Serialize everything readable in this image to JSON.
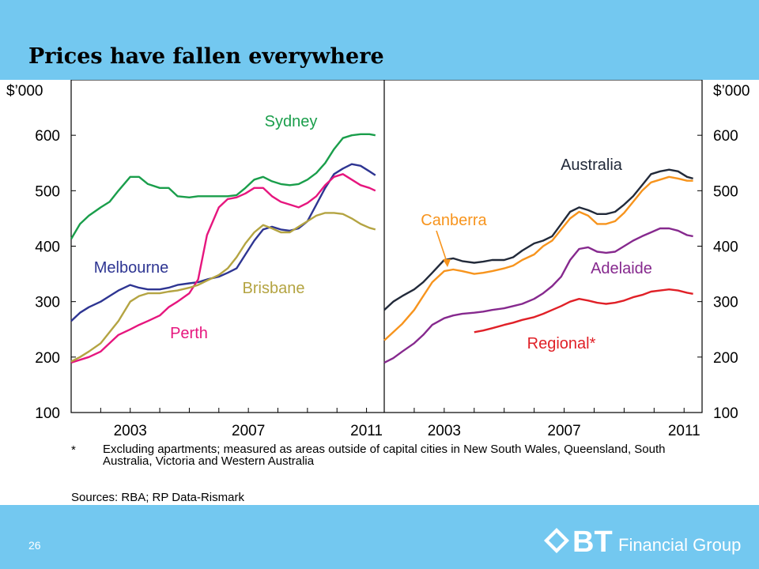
{
  "slide": {
    "title": "Prices have fallen everywhere",
    "page_number": "26",
    "logo_text": "Financial Group",
    "logo_mark": "BT"
  },
  "footnote": {
    "mark": "*",
    "text": "Excluding apartments; measured as areas outside of capital cities in New South Wales, Queensland, South Australia, Victoria and Western Australia"
  },
  "sources": "Sources: RBA; RP Data-Rismark",
  "chart_data": [
    {
      "type": "line",
      "ylabel": "$’000",
      "ylim": [
        100,
        700
      ],
      "yticks": [
        "100",
        "200",
        "300",
        "400",
        "500",
        "600"
      ],
      "xlim": [
        2001.0,
        2011.6
      ],
      "xticks": [
        "2003",
        "2007",
        "2011"
      ],
      "grid": false,
      "series": [
        {
          "name": "Sydney",
          "color": "#1a9e4b",
          "x": [
            2001.0,
            2001.3,
            2001.6,
            2002.0,
            2002.3,
            2002.6,
            2003.0,
            2003.3,
            2003.6,
            2004.0,
            2004.3,
            2004.6,
            2005.0,
            2005.3,
            2005.6,
            2006.0,
            2006.3,
            2006.6,
            2006.9,
            2007.2,
            2007.5,
            2007.8,
            2008.1,
            2008.4,
            2008.7,
            2009.0,
            2009.3,
            2009.6,
            2009.9,
            2010.2,
            2010.5,
            2010.8,
            2011.1,
            2011.3
          ],
          "values": [
            413,
            440,
            455,
            470,
            480,
            500,
            525,
            525,
            512,
            505,
            505,
            490,
            488,
            490,
            490,
            490,
            490,
            492,
            505,
            520,
            525,
            517,
            512,
            510,
            512,
            520,
            532,
            550,
            575,
            595,
            600,
            602,
            602,
            600
          ]
        },
        {
          "name": "Melbourne",
          "color": "#2e3592",
          "x": [
            2001.0,
            2001.3,
            2001.6,
            2002.0,
            2002.3,
            2002.6,
            2003.0,
            2003.3,
            2003.6,
            2004.0,
            2004.3,
            2004.6,
            2005.0,
            2005.3,
            2005.6,
            2006.0,
            2006.3,
            2006.6,
            2006.9,
            2007.2,
            2007.5,
            2007.8,
            2008.1,
            2008.4,
            2008.7,
            2009.0,
            2009.3,
            2009.6,
            2009.9,
            2010.2,
            2010.5,
            2010.8,
            2011.1,
            2011.3
          ],
          "values": [
            265,
            280,
            290,
            300,
            310,
            320,
            330,
            325,
            322,
            322,
            325,
            330,
            333,
            335,
            340,
            345,
            352,
            360,
            385,
            410,
            430,
            435,
            430,
            428,
            432,
            445,
            475,
            505,
            530,
            540,
            548,
            545,
            535,
            528
          ]
        },
        {
          "name": "Perth",
          "color": "#e6167e",
          "x": [
            2001.0,
            2001.3,
            2001.6,
            2002.0,
            2002.3,
            2002.6,
            2003.0,
            2003.3,
            2003.6,
            2004.0,
            2004.3,
            2004.6,
            2005.0,
            2005.3,
            2005.6,
            2006.0,
            2006.3,
            2006.6,
            2006.9,
            2007.2,
            2007.5,
            2007.8,
            2008.1,
            2008.4,
            2008.7,
            2009.0,
            2009.3,
            2009.6,
            2009.9,
            2010.2,
            2010.5,
            2010.8,
            2011.1,
            2011.3
          ],
          "values": [
            190,
            195,
            200,
            210,
            225,
            240,
            250,
            258,
            265,
            275,
            290,
            300,
            315,
            340,
            420,
            470,
            485,
            488,
            495,
            505,
            505,
            490,
            480,
            475,
            470,
            478,
            490,
            510,
            525,
            530,
            520,
            510,
            505,
            500
          ]
        },
        {
          "name": "Brisbane",
          "color": "#b4a442",
          "x": [
            2001.0,
            2001.3,
            2001.6,
            2002.0,
            2002.3,
            2002.6,
            2003.0,
            2003.3,
            2003.6,
            2004.0,
            2004.3,
            2004.6,
            2005.0,
            2005.3,
            2005.6,
            2006.0,
            2006.3,
            2006.6,
            2006.9,
            2007.2,
            2007.5,
            2007.8,
            2008.1,
            2008.4,
            2008.7,
            2009.0,
            2009.3,
            2009.6,
            2009.9,
            2010.2,
            2010.5,
            2010.8,
            2011.1,
            2011.3
          ],
          "values": [
            192,
            200,
            210,
            225,
            245,
            265,
            300,
            310,
            315,
            315,
            318,
            320,
            325,
            330,
            338,
            348,
            360,
            380,
            405,
            425,
            438,
            432,
            425,
            425,
            435,
            445,
            455,
            460,
            460,
            458,
            450,
            440,
            433,
            430
          ]
        }
      ],
      "annotations": [
        "Sydney",
        "Melbourne",
        "Brisbane",
        "Perth"
      ]
    },
    {
      "type": "line",
      "ylabel": "$’000",
      "ylim": [
        100,
        700
      ],
      "yticks": [
        "100",
        "200",
        "300",
        "400",
        "500",
        "600"
      ],
      "xlim": [
        2001.0,
        2011.6
      ],
      "xticks": [
        "2003",
        "2007",
        "2011"
      ],
      "grid": false,
      "series": [
        {
          "name": "Australia",
          "color": "#222a3a",
          "x": [
            2001.0,
            2001.3,
            2001.6,
            2002.0,
            2002.3,
            2002.6,
            2003.0,
            2003.3,
            2003.6,
            2004.0,
            2004.3,
            2004.6,
            2005.0,
            2005.3,
            2005.6,
            2006.0,
            2006.3,
            2006.6,
            2006.9,
            2007.2,
            2007.5,
            2007.8,
            2008.1,
            2008.4,
            2008.7,
            2009.0,
            2009.3,
            2009.6,
            2009.9,
            2010.2,
            2010.5,
            2010.8,
            2011.1,
            2011.3
          ],
          "values": [
            285,
            300,
            310,
            322,
            335,
            352,
            375,
            378,
            373,
            370,
            372,
            375,
            375,
            380,
            392,
            405,
            410,
            418,
            440,
            462,
            470,
            465,
            458,
            458,
            462,
            475,
            490,
            510,
            530,
            535,
            538,
            535,
            525,
            522
          ]
        },
        {
          "name": "Canberra",
          "color": "#f7941d",
          "x": [
            2001.0,
            2001.3,
            2001.6,
            2002.0,
            2002.3,
            2002.6,
            2003.0,
            2003.3,
            2003.6,
            2004.0,
            2004.3,
            2004.6,
            2005.0,
            2005.3,
            2005.6,
            2006.0,
            2006.3,
            2006.6,
            2006.9,
            2007.2,
            2007.5,
            2007.8,
            2008.1,
            2008.4,
            2008.7,
            2009.0,
            2009.3,
            2009.6,
            2009.9,
            2010.2,
            2010.5,
            2010.8,
            2011.1,
            2011.3
          ],
          "values": [
            230,
            245,
            260,
            285,
            310,
            335,
            355,
            358,
            355,
            350,
            352,
            355,
            360,
            365,
            375,
            385,
            400,
            410,
            430,
            450,
            462,
            455,
            440,
            440,
            445,
            460,
            480,
            500,
            515,
            520,
            525,
            522,
            518,
            518
          ]
        },
        {
          "name": "Adelaide",
          "color": "#86298e",
          "x": [
            2001.0,
            2001.3,
            2001.6,
            2002.0,
            2002.3,
            2002.6,
            2003.0,
            2003.3,
            2003.6,
            2004.0,
            2004.3,
            2004.6,
            2005.0,
            2005.3,
            2005.6,
            2006.0,
            2006.3,
            2006.6,
            2006.9,
            2007.2,
            2007.5,
            2007.8,
            2008.1,
            2008.4,
            2008.7,
            2009.0,
            2009.3,
            2009.6,
            2009.9,
            2010.2,
            2010.5,
            2010.8,
            2011.1,
            2011.3
          ],
          "values": [
            190,
            198,
            210,
            225,
            240,
            258,
            270,
            275,
            278,
            280,
            282,
            285,
            288,
            292,
            296,
            305,
            315,
            328,
            345,
            375,
            395,
            398,
            390,
            388,
            390,
            400,
            410,
            418,
            425,
            432,
            432,
            428,
            420,
            418
          ]
        },
        {
          "name": "Regional*",
          "color": "#e02027",
          "x": [
            2004.0,
            2004.3,
            2004.6,
            2005.0,
            2005.3,
            2005.6,
            2006.0,
            2006.3,
            2006.6,
            2006.9,
            2007.2,
            2007.5,
            2007.8,
            2008.1,
            2008.4,
            2008.7,
            2009.0,
            2009.3,
            2009.6,
            2009.9,
            2010.2,
            2010.5,
            2010.8,
            2011.1,
            2011.3
          ],
          "values": [
            245,
            248,
            252,
            258,
            262,
            267,
            272,
            278,
            285,
            292,
            300,
            305,
            302,
            298,
            296,
            298,
            302,
            308,
            312,
            318,
            320,
            322,
            320,
            316,
            314
          ]
        }
      ],
      "annotations": [
        "Australia",
        "Canberra",
        "Adelaide",
        "Regional*"
      ]
    }
  ]
}
